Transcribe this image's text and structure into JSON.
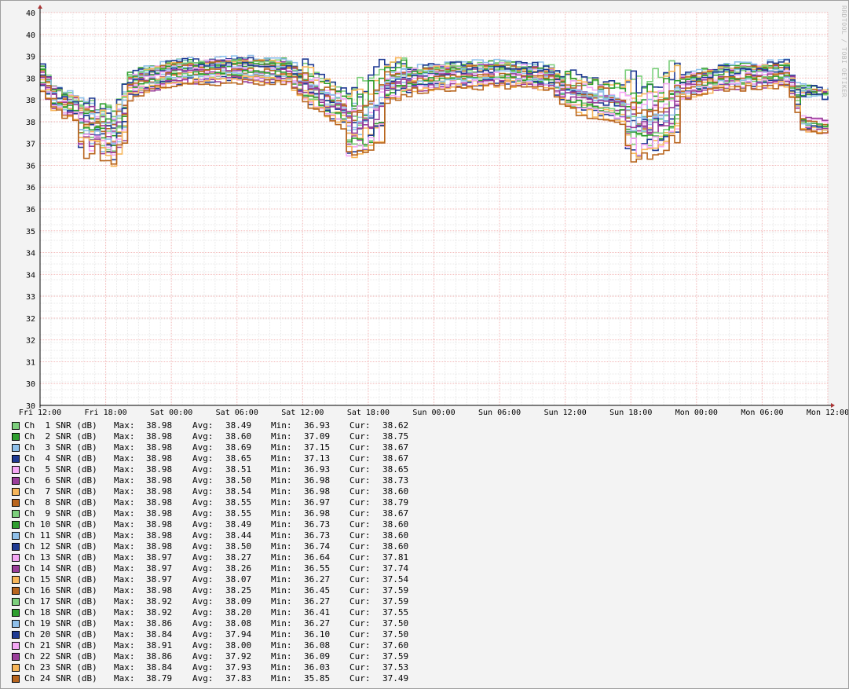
{
  "watermark": "RRDTOOL / TOBI OETIKER",
  "legend_labels": {
    "max": "Max:",
    "avg": "Avg:",
    "min": "Min:",
    "cur": "Cur:"
  },
  "chart_data": {
    "type": "line",
    "title": "",
    "xlabel": "",
    "ylabel": "",
    "ylim": [
      30,
      40
    ],
    "y_tick_labels": [
      "30",
      "30",
      "31",
      "32",
      "32",
      "33",
      "34",
      "34",
      "35",
      "36",
      "36",
      "36",
      "37",
      "38",
      "38",
      "38",
      "39",
      "40",
      "40"
    ],
    "x_tick_labels": [
      "Fri 12:00",
      "Fri 18:00",
      "Sat 00:00",
      "Sat 06:00",
      "Sat 12:00",
      "Sat 18:00",
      "Sun 00:00",
      "Sun 06:00",
      "Sun 12:00",
      "Sun 18:00",
      "Mon 00:00",
      "Mon 06:00",
      "Mon 12:00"
    ],
    "x_range_hours": [
      0,
      72
    ],
    "grid": true,
    "legend_position": "bottom",
    "series": [
      {
        "name": "Ch  1 SNR (dB)",
        "color": "#7ccf7c",
        "max": "38.98",
        "avg": "38.49",
        "min": "36.93",
        "cur": "38.62"
      },
      {
        "name": "Ch  2 SNR (dB)",
        "color": "#2e9e2e",
        "max": "38.98",
        "avg": "38.60",
        "min": "37.09",
        "cur": "38.75"
      },
      {
        "name": "Ch  3 SNR (dB)",
        "color": "#8fc0ea",
        "max": "38.98",
        "avg": "38.69",
        "min": "37.15",
        "cur": "38.67"
      },
      {
        "name": "Ch  4 SNR (dB)",
        "color": "#1f3a93",
        "max": "38.98",
        "avg": "38.65",
        "min": "37.13",
        "cur": "38.67"
      },
      {
        "name": "Ch  5 SNR (dB)",
        "color": "#f5a8f5",
        "max": "38.98",
        "avg": "38.51",
        "min": "36.93",
        "cur": "38.65"
      },
      {
        "name": "Ch  6 SNR (dB)",
        "color": "#9a3e9a",
        "max": "38.98",
        "avg": "38.50",
        "min": "36.98",
        "cur": "38.73"
      },
      {
        "name": "Ch  7 SNR (dB)",
        "color": "#f7b65a",
        "max": "38.98",
        "avg": "38.54",
        "min": "36.98",
        "cur": "38.60"
      },
      {
        "name": "Ch  8 SNR (dB)",
        "color": "#b8651e",
        "max": "38.98",
        "avg": "38.55",
        "min": "36.97",
        "cur": "38.79"
      },
      {
        "name": "Ch  9 SNR (dB)",
        "color": "#7ccf7c",
        "max": "38.98",
        "avg": "38.55",
        "min": "36.98",
        "cur": "38.67"
      },
      {
        "name": "Ch 10 SNR (dB)",
        "color": "#2e9e2e",
        "max": "38.98",
        "avg": "38.49",
        "min": "36.73",
        "cur": "38.60"
      },
      {
        "name": "Ch 11 SNR (dB)",
        "color": "#8fc0ea",
        "max": "38.98",
        "avg": "38.44",
        "min": "36.73",
        "cur": "38.60"
      },
      {
        "name": "Ch 12 SNR (dB)",
        "color": "#1f3a93",
        "max": "38.98",
        "avg": "38.50",
        "min": "36.74",
        "cur": "38.60"
      },
      {
        "name": "Ch 13 SNR (dB)",
        "color": "#f5a8f5",
        "max": "38.97",
        "avg": "38.27",
        "min": "36.64",
        "cur": "37.81"
      },
      {
        "name": "Ch 14 SNR (dB)",
        "color": "#9a3e9a",
        "max": "38.97",
        "avg": "38.26",
        "min": "36.55",
        "cur": "37.74"
      },
      {
        "name": "Ch 15 SNR (dB)",
        "color": "#f7b65a",
        "max": "38.97",
        "avg": "38.07",
        "min": "36.27",
        "cur": "37.54"
      },
      {
        "name": "Ch 16 SNR (dB)",
        "color": "#b8651e",
        "max": "38.98",
        "avg": "38.25",
        "min": "36.45",
        "cur": "37.59"
      },
      {
        "name": "Ch 17 SNR (dB)",
        "color": "#7ccf7c",
        "max": "38.92",
        "avg": "38.09",
        "min": "36.27",
        "cur": "37.59"
      },
      {
        "name": "Ch 18 SNR (dB)",
        "color": "#2e9e2e",
        "max": "38.92",
        "avg": "38.20",
        "min": "36.41",
        "cur": "37.55"
      },
      {
        "name": "Ch 19 SNR (dB)",
        "color": "#8fc0ea",
        "max": "38.86",
        "avg": "38.08",
        "min": "36.27",
        "cur": "37.50"
      },
      {
        "name": "Ch 20 SNR (dB)",
        "color": "#1f3a93",
        "max": "38.84",
        "avg": "37.94",
        "min": "36.10",
        "cur": "37.50"
      },
      {
        "name": "Ch 21 SNR (dB)",
        "color": "#f5a8f5",
        "max": "38.91",
        "avg": "38.00",
        "min": "36.08",
        "cur": "37.60"
      },
      {
        "name": "Ch 22 SNR (dB)",
        "color": "#9a3e9a",
        "max": "38.86",
        "avg": "37.92",
        "min": "36.09",
        "cur": "37.59"
      },
      {
        "name": "Ch 23 SNR (dB)",
        "color": "#f7b65a",
        "max": "38.84",
        "avg": "37.93",
        "min": "36.03",
        "cur": "37.53"
      },
      {
        "name": "Ch 24 SNR (dB)",
        "color": "#b8651e",
        "max": "38.79",
        "avg": "37.83",
        "min": "35.85",
        "cur": "37.49"
      }
    ]
  }
}
